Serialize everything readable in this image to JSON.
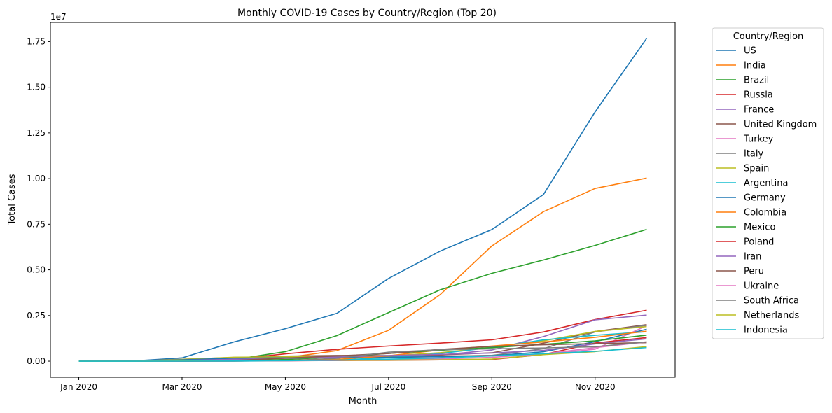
{
  "chart_data": {
    "type": "line",
    "title": "Monthly COVID-19 Cases by Country/Region (Top 20)",
    "xlabel": "Month",
    "ylabel": "Total Cases",
    "y_multiplier_label": "1e7",
    "x": [
      "2020-01",
      "2020-02",
      "2020-03",
      "2020-04",
      "2020-05",
      "2020-06",
      "2020-07",
      "2020-08",
      "2020-09",
      "2020-10",
      "2020-11",
      "2020-12"
    ],
    "x_ticks": [
      {
        "x": "2020-01",
        "label": "Jan 2020"
      },
      {
        "x": "2020-03",
        "label": "Mar 2020"
      },
      {
        "x": "2020-05",
        "label": "May 2020"
      },
      {
        "x": "2020-07",
        "label": "Jul 2020"
      },
      {
        "x": "2020-09",
        "label": "Sep 2020"
      },
      {
        "x": "2020-11",
        "label": "Nov 2020"
      }
    ],
    "y_ticks": [
      {
        "value": 0.0,
        "label": "0.00"
      },
      {
        "value": 0.25,
        "label": "0.25"
      },
      {
        "value": 0.5,
        "label": "0.50"
      },
      {
        "value": 0.75,
        "label": "0.75"
      },
      {
        "value": 1.0,
        "label": "1.00"
      },
      {
        "value": 1.25,
        "label": "1.25"
      },
      {
        "value": 1.5,
        "label": "1.50"
      },
      {
        "value": 1.75,
        "label": "1.75"
      }
    ],
    "y_unit": 10000000,
    "ylim": [
      -0.088,
      1.855
    ],
    "grid": false,
    "legend": {
      "title": "Country/Region",
      "placement": "outside-right"
    },
    "series": [
      {
        "name": "US",
        "color": "#1f77b4",
        "values": [
          1e-05,
          2e-06,
          0.018,
          0.105,
          0.178,
          0.262,
          0.453,
          0.603,
          0.721,
          0.913,
          1.365,
          1.768
        ]
      },
      {
        "name": "India",
        "color": "#ff7f0e",
        "values": [
          0,
          0,
          0.0001,
          0.0033,
          0.018,
          0.058,
          0.169,
          0.365,
          0.631,
          0.819,
          0.946,
          1.003
        ]
      },
      {
        "name": "Brazil",
        "color": "#2ca02c",
        "values": [
          0,
          0,
          0.0006,
          0.009,
          0.052,
          0.14,
          0.266,
          0.391,
          0.481,
          0.554,
          0.634,
          0.722
        ]
      },
      {
        "name": "Russia",
        "color": "#d62728",
        "values": [
          0,
          0,
          0.0002,
          0.011,
          0.04,
          0.065,
          0.083,
          0.099,
          0.117,
          0.16,
          0.228,
          0.279
        ]
      },
      {
        "name": "France",
        "color": "#9467bd",
        "values": [
          5e-06,
          1e-05,
          0.0053,
          0.0168,
          0.0189,
          0.0203,
          0.0227,
          0.0335,
          0.0609,
          0.1349,
          0.2265,
          0.2524
        ]
      },
      {
        "name": "United Kingdom",
        "color": "#8c564b",
        "values": [
          0,
          2e-06,
          0.0025,
          0.0172,
          0.0275,
          0.0313,
          0.0304,
          0.0338,
          0.0457,
          0.0985,
          0.1627,
          0.2001
        ]
      },
      {
        "name": "Turkey",
        "color": "#e377c2",
        "values": [
          0,
          0,
          0.0013,
          0.0117,
          0.0163,
          0.0199,
          0.0232,
          0.0273,
          0.0318,
          0.037,
          0.0656,
          0.1948
        ]
      },
      {
        "name": "Italy",
        "color": "#7f7f7f",
        "values": [
          0,
          0.0001,
          0.0106,
          0.0206,
          0.0233,
          0.0241,
          0.0248,
          0.0269,
          0.0315,
          0.068,
          0.1602,
          0.1964
        ]
      },
      {
        "name": "Spain",
        "color": "#bcbd22",
        "values": [
          0,
          0,
          0.0094,
          0.0213,
          0.0239,
          0.0249,
          0.0288,
          0.0463,
          0.077,
          0.1116,
          0.1628,
          0.1894
        ]
      },
      {
        "name": "Argentina",
        "color": "#17becf",
        "values": [
          0,
          0,
          0.0001,
          0.0004,
          0.0017,
          0.0064,
          0.0191,
          0.0418,
          0.0752,
          0.1167,
          0.1418,
          0.1614
        ]
      },
      {
        "name": "Germany",
        "color": "#1f77b4",
        "values": [
          0,
          2e-05,
          0.0072,
          0.0163,
          0.0183,
          0.0195,
          0.0211,
          0.0244,
          0.0292,
          0.0514,
          0.1067,
          0.175
        ]
      },
      {
        "name": "Colombia",
        "color": "#ff7f0e",
        "values": [
          0,
          0,
          0.0001,
          0.0007,
          0.0029,
          0.0097,
          0.0296,
          0.0615,
          0.0829,
          0.1053,
          0.1308,
          0.1643
        ]
      },
      {
        "name": "Mexico",
        "color": "#2ca02c",
        "values": [
          0,
          0,
          0.0001,
          0.0019,
          0.009,
          0.0226,
          0.0424,
          0.0599,
          0.0743,
          0.0925,
          0.1113,
          0.1426
        ]
      },
      {
        "name": "Poland",
        "color": "#d62728",
        "values": [
          0,
          0,
          0.0002,
          0.0012,
          0.0023,
          0.0035,
          0.0047,
          0.0069,
          0.0091,
          0.0364,
          0.0994,
          0.1294
        ]
      },
      {
        "name": "Iran",
        "color": "#9467bd",
        "values": [
          0,
          0.0001,
          0.0044,
          0.0094,
          0.0152,
          0.0228,
          0.0305,
          0.0373,
          0.0446,
          0.0588,
          0.0949,
          0.1225
        ]
      },
      {
        "name": "Peru",
        "color": "#8c564b",
        "values": [
          0,
          0,
          0.0001,
          0.0036,
          0.0165,
          0.0285,
          0.0422,
          0.0647,
          0.0811,
          0.09,
          0.0962,
          0.1015
        ]
      },
      {
        "name": "Ukraine",
        "color": "#e377c2",
        "values": [
          0,
          0,
          0.0001,
          0.001,
          0.0024,
          0.0044,
          0.0073,
          0.0121,
          0.0209,
          0.0397,
          0.074,
          0.1055
        ]
      },
      {
        "name": "South Africa",
        "color": "#7f7f7f",
        "values": [
          0,
          0,
          0.0001,
          0.0005,
          0.0033,
          0.0151,
          0.0493,
          0.0627,
          0.0673,
          0.0725,
          0.079,
          0.1058
        ]
      },
      {
        "name": "Netherlands",
        "color": "#bcbd22",
        "values": [
          0,
          0,
          0.0012,
          0.0039,
          0.0047,
          0.0051,
          0.0057,
          0.0071,
          0.0114,
          0.0359,
          0.0523,
          0.0801
        ]
      },
      {
        "name": "Indonesia",
        "color": "#17becf",
        "values": [
          0,
          0,
          0.0002,
          0.001,
          0.0026,
          0.0056,
          0.0109,
          0.0175,
          0.0288,
          0.041,
          0.0538,
          0.0744
        ]
      }
    ]
  }
}
